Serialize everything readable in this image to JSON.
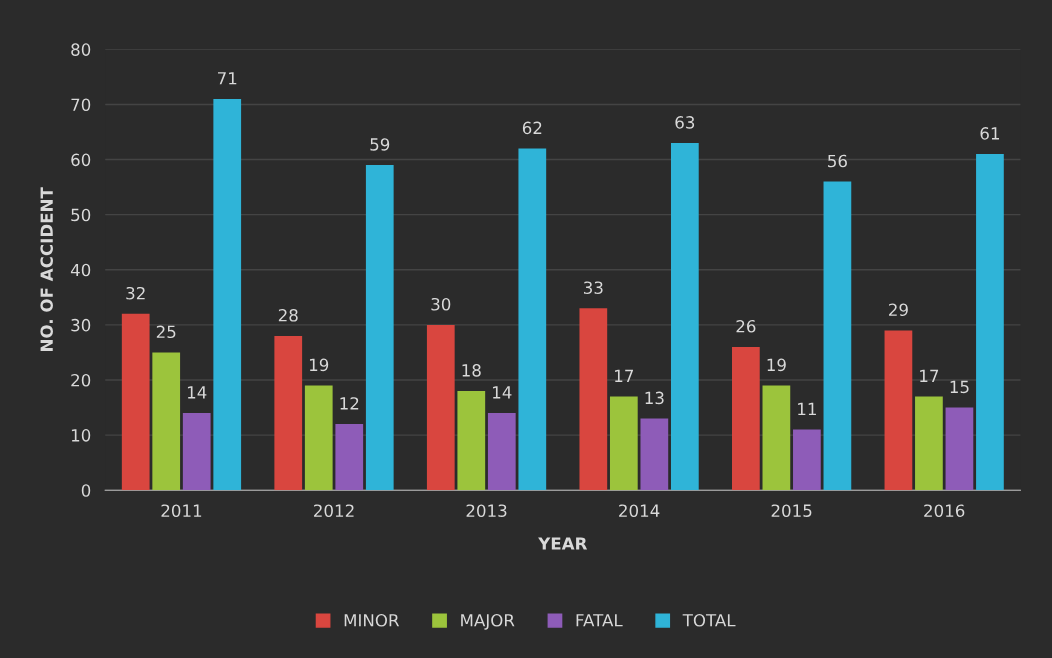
{
  "chart_data": {
    "type": "bar",
    "xlabel": "YEAR",
    "ylabel": "NO. OF ACCIDENT",
    "categories": [
      "2011",
      "2012",
      "2013",
      "2014",
      "2015",
      "2016"
    ],
    "series": [
      {
        "name": "MINOR",
        "color": "#d9463f",
        "values": [
          32,
          28,
          30,
          33,
          26,
          29
        ]
      },
      {
        "name": "MAJOR",
        "color": "#9cc43c",
        "values": [
          25,
          19,
          18,
          17,
          19,
          17
        ]
      },
      {
        "name": "FATAL",
        "color": "#8e5cb8",
        "values": [
          14,
          12,
          14,
          13,
          11,
          15
        ]
      },
      {
        "name": "TOTAL",
        "color": "#2fb4d8",
        "values": [
          71,
          59,
          62,
          63,
          56,
          61
        ]
      }
    ],
    "ylim": [
      0,
      80
    ],
    "yticks": [
      0,
      10,
      20,
      30,
      40,
      50,
      60,
      70,
      80
    ],
    "grid": "y",
    "legend": "bottom",
    "data_labels": true
  }
}
